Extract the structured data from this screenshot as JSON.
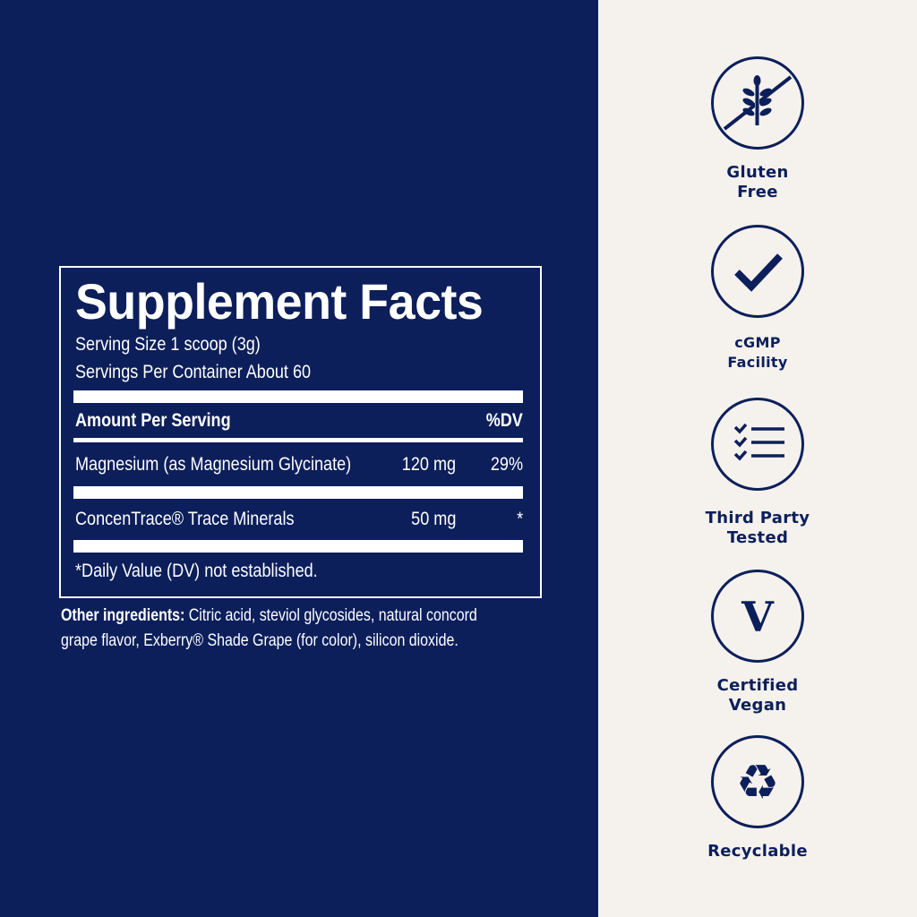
{
  "facts": {
    "title": "Supplement Facts",
    "serving_size": "Serving Size 1 scoop (3g)",
    "servings_per_container": "Servings Per Container About 60",
    "header_amount": "Amount Per Serving",
    "header_dv": "%DV",
    "rows": [
      {
        "name": "Magnesium (as Magnesium Glycinate)",
        "amount": "120 mg",
        "dv": "29%"
      },
      {
        "name": "ConcenTrace® Trace Minerals",
        "amount": "50 mg",
        "dv": "*"
      }
    ],
    "footnote": "*Daily Value (DV) not established."
  },
  "other_ingredients": {
    "label": "Other ingredients:",
    "line1": "Citric acid, steviol glycosides, natural concord",
    "line2": "grape flavor, Exberry® Shade Grape (for color), silicon dioxide."
  },
  "badges": [
    {
      "icon": "gluten-free-icon",
      "line1": "Gluten",
      "line2": "Free"
    },
    {
      "icon": "checkmark-icon",
      "line1": "cGMP",
      "line2": "Facility"
    },
    {
      "icon": "checklist-icon",
      "line1": "Third Party",
      "line2": "Tested"
    },
    {
      "icon": "vegan-v-icon",
      "line1": "Certified",
      "line2": "Vegan"
    },
    {
      "icon": "recycle-icon",
      "line1": "Recyclable",
      "line2": ""
    }
  ],
  "colors": {
    "navy": "#0c1f5b",
    "cream": "#f5f1ec",
    "white": "#ffffff"
  }
}
